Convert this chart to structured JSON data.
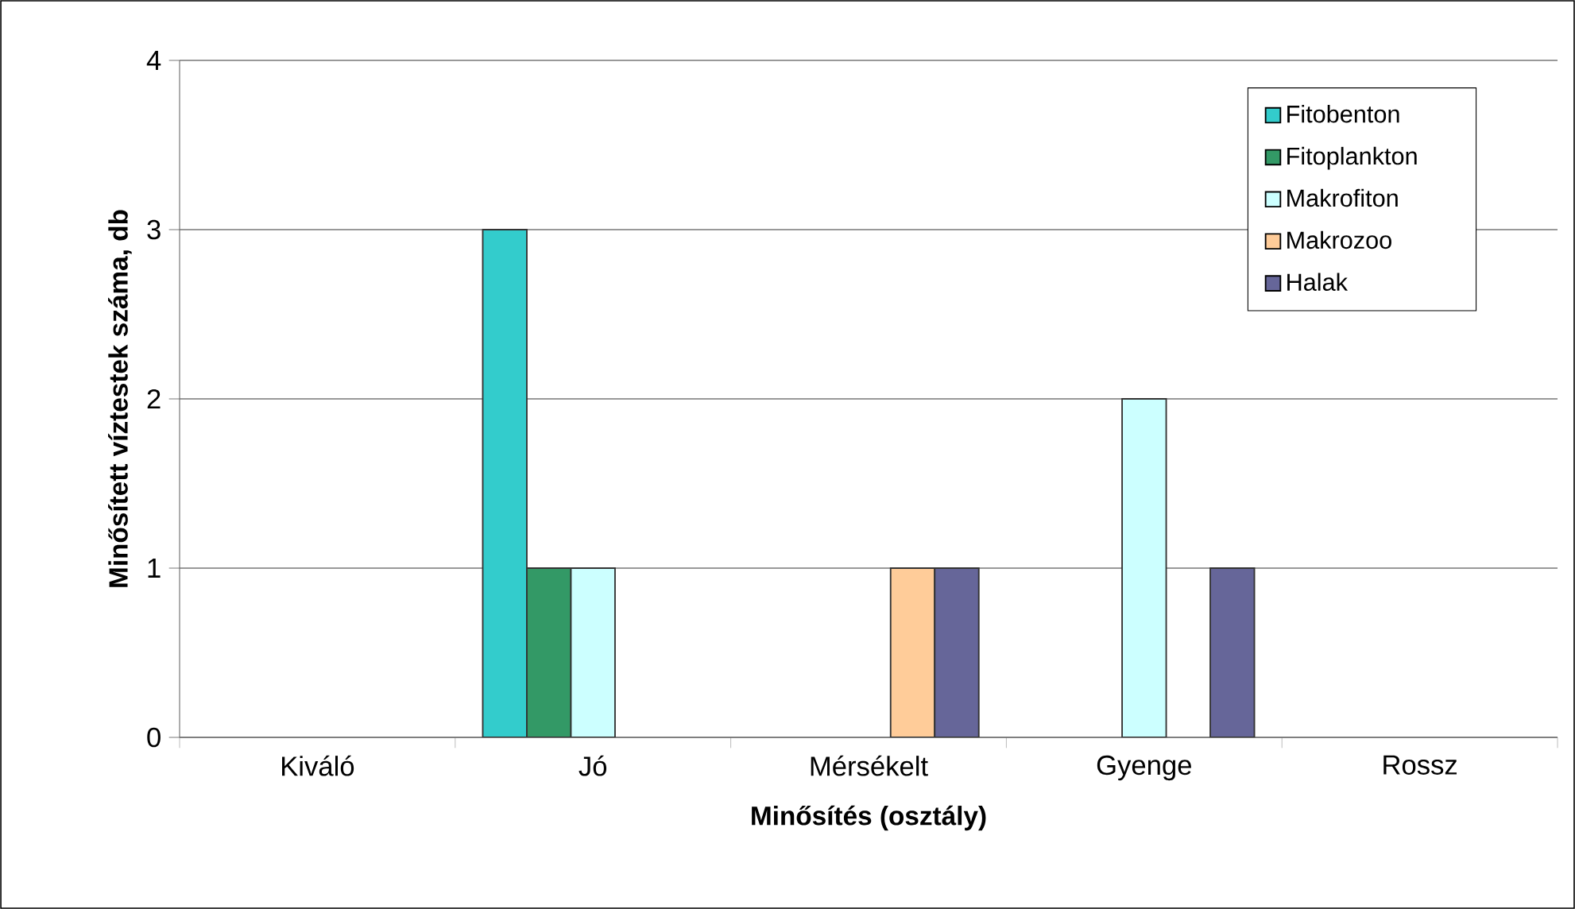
{
  "chart_data": {
    "type": "bar",
    "xlabel": "Minősítés (osztály)",
    "ylabel": "Minősített víztestek száma, db",
    "categories": [
      "Kiváló",
      "Jó",
      "Mérsékelt",
      "Gyenge",
      "Rossz"
    ],
    "series": [
      {
        "name": "Fitobenton",
        "color": "#33cccc",
        "values": [
          null,
          3,
          null,
          null,
          null
        ]
      },
      {
        "name": "Fitoplankton",
        "color": "#339966",
        "values": [
          null,
          1,
          null,
          null,
          null
        ]
      },
      {
        "name": "Makrofiton",
        "color": "#ccffff",
        "values": [
          null,
          1,
          null,
          2,
          null
        ]
      },
      {
        "name": "Makrozoo",
        "color": "#ffcc99",
        "values": [
          null,
          null,
          1,
          null,
          null
        ]
      },
      {
        "name": "Halak",
        "color": "#666699",
        "values": [
          null,
          null,
          1,
          1,
          null
        ]
      }
    ],
    "ylim": [
      0,
      4
    ],
    "yticks": [
      0,
      1,
      2,
      3,
      4
    ],
    "grid": "y",
    "legend": "top right"
  }
}
